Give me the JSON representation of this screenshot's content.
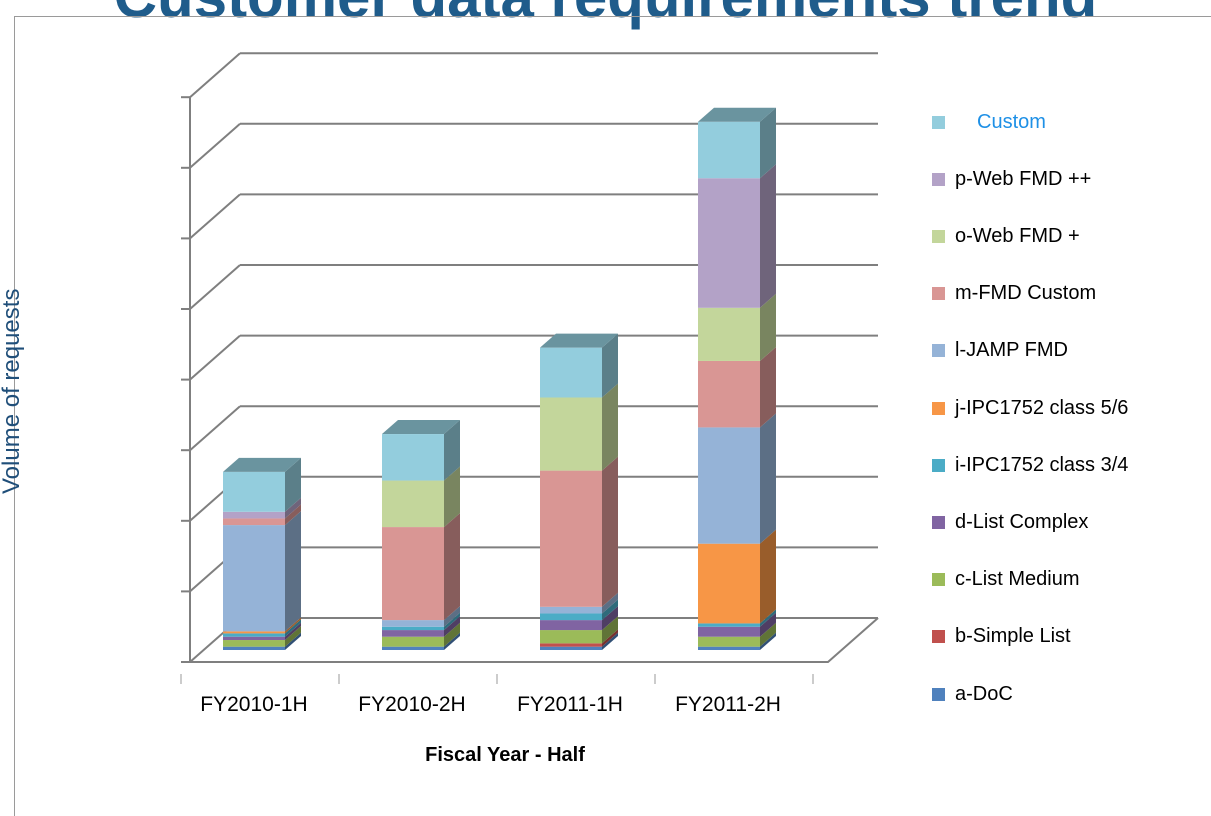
{
  "title": "Customer data requirements trend",
  "chart_data": {
    "type": "bar",
    "stacked": true,
    "three_d": true,
    "xlabel": "Fiscal Year - Half",
    "ylabel": "Volume of requests",
    "categories": [
      "FY2010-1H",
      "FY2010-2H",
      "FY2011-1H",
      "FY2011-2H"
    ],
    "ylim": [
      0,
      8.5
    ],
    "grid": true,
    "legend_position": "right",
    "series": [
      {
        "name": "a-DoC",
        "color": "#4f81bd",
        "values": [
          0.05,
          0.05,
          0.05,
          0.05
        ]
      },
      {
        "name": "b-Simple List",
        "color": "#c0504d",
        "values": [
          0.0,
          0.0,
          0.05,
          0.0
        ]
      },
      {
        "name": "c-List Medium",
        "color": "#9bbb59",
        "values": [
          0.1,
          0.15,
          0.2,
          0.15
        ]
      },
      {
        "name": "d-List Complex",
        "color": "#8064a2",
        "values": [
          0.05,
          0.1,
          0.15,
          0.15
        ]
      },
      {
        "name": "i-IPC1752 class 3/4",
        "color": "#4bacc6",
        "values": [
          0.05,
          0.05,
          0.1,
          0.05
        ]
      },
      {
        "name": "j-IPC1752 class 5/6",
        "color": "#f79646",
        "values": [
          0.03,
          0.0,
          0.0,
          1.2
        ]
      },
      {
        "name": "l-JAMP FMD",
        "color": "#95b3d7",
        "values": [
          1.6,
          0.1,
          0.1,
          1.75
        ]
      },
      {
        "name": "m-FMD Custom",
        "color": "#d99694",
        "values": [
          0.1,
          1.4,
          2.05,
          1.0
        ]
      },
      {
        "name": "o-Web FMD +",
        "color": "#c3d69b",
        "values": [
          0.0,
          0.7,
          1.1,
          0.8
        ]
      },
      {
        "name": "p-Web FMD ++",
        "color": "#b3a2c7",
        "values": [
          0.1,
          0.0,
          0.0,
          1.95
        ]
      },
      {
        "name": "Custom",
        "color": "#93cddd",
        "values": [
          0.6,
          0.7,
          0.75,
          0.85
        ]
      }
    ]
  },
  "legend_order": [
    "Custom",
    "p-Web FMD ++",
    "o-Web FMD +",
    "m-FMD Custom",
    "l-JAMP FMD",
    "j-IPC1752 class 5/6",
    "i-IPC1752 class 3/4",
    "d-List Complex",
    "c-List Medium",
    "b-Simple List",
    "a-DoC"
  ],
  "colors": {
    "title": "#1f5c8b",
    "axis_title": "#1f4e79",
    "legend_first": "#1e90e6",
    "grid": "#7f7f7f"
  }
}
